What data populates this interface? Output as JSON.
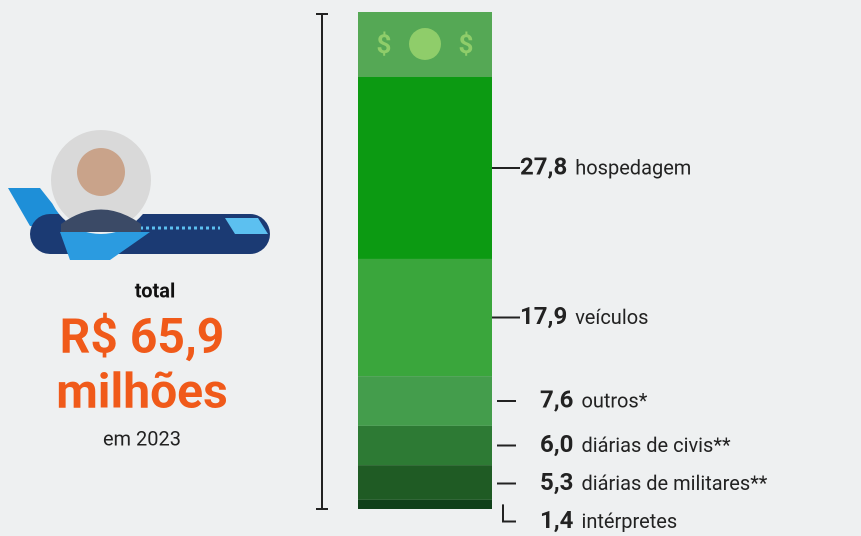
{
  "chart_data": {
    "type": "stacked-bar",
    "total_label": "total",
    "total_value": "R$ 65,9",
    "total_unit": "milhões",
    "total_period": "em 2023",
    "categories": [
      "hospedagem",
      "veículos",
      "outros*",
      "diárias de civis**",
      "diárias de militares**",
      "intérpretes"
    ],
    "values": [
      27.8,
      17.9,
      7.6,
      6.0,
      5.3,
      1.4
    ],
    "value_labels": [
      "27,8",
      "17,9",
      "7,6",
      "6,0",
      "5,3",
      "1,4"
    ],
    "colors": [
      "#0c9a12",
      "#3aa63c",
      "#449d4c",
      "#2d7a34",
      "#1f5b24",
      "#10401a"
    ]
  }
}
